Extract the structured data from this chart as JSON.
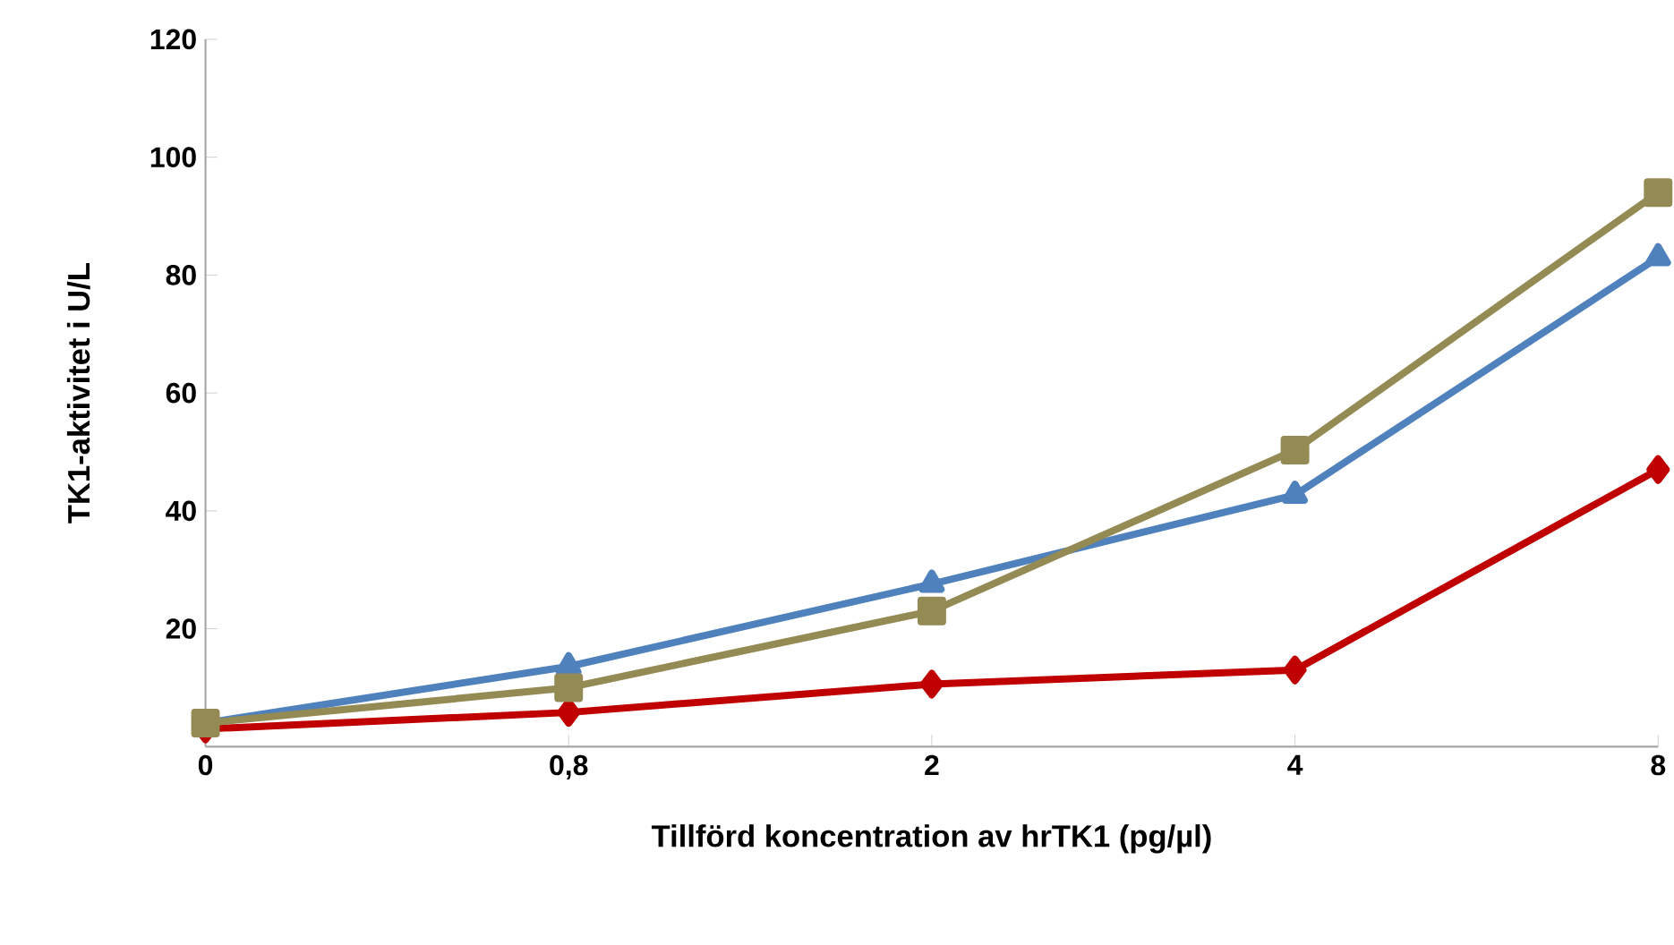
{
  "chart_data": {
    "type": "line",
    "xlabel": "Tillförd koncentration av hrTK1 (pg/µl)",
    "ylabel": "TK1-aktivitet i U/L",
    "categories": [
      "0",
      "0,8",
      "2",
      "4",
      "8"
    ],
    "series": [
      {
        "color": "#c00000",
        "marker": "diamond",
        "values": [
          3,
          5.8,
          10.6,
          13,
          47
        ]
      },
      {
        "color": "#4f81bd",
        "marker": "triangle",
        "values": [
          4,
          13.6,
          27.6,
          42.7,
          83
        ]
      },
      {
        "color": "#948a54",
        "marker": "square",
        "values": [
          4,
          10,
          23,
          50.3,
          94
        ]
      }
    ],
    "ylim": [
      0,
      120
    ],
    "yticks": [
      {
        "value": 0,
        "label": null
      },
      20,
      40,
      60,
      80,
      100,
      120
    ],
    "grid": false,
    "line_style": "solid"
  }
}
